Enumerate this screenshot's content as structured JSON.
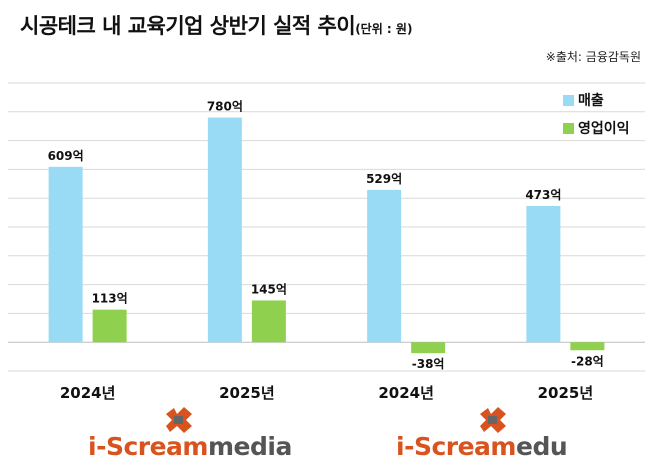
{
  "title": "시공테크 내 교육기업 상반기 실적 추이",
  "unit_label": "(단위 : 원)",
  "source": "※출처: 금융감독원",
  "colors": {
    "sales": "#99DBF5",
    "operating_profit": "#8FD14F",
    "logo_red": "#D9531E",
    "logo_gray": "#666666"
  },
  "logos": [
    {
      "prefix": "i-Scream",
      "suffix": "media"
    },
    {
      "prefix": "i-Scream",
      "suffix": "edu"
    }
  ],
  "chart_data": {
    "type": "bar",
    "title": "시공테크 내 교육기업 상반기 실적 추이",
    "categories": [
      "2024년",
      "2025년",
      "2024년",
      "2025년"
    ],
    "series": [
      {
        "name": "매출",
        "values": [
          609,
          780,
          529,
          473
        ],
        "labels": [
          "609억",
          "780억",
          "529억",
          "473억"
        ]
      },
      {
        "name": "영업이익",
        "values": [
          113,
          145,
          -38,
          -28
        ],
        "labels": [
          "113억",
          "145억",
          "-38억",
          "-28억"
        ]
      }
    ],
    "ylim": [
      -100,
      900
    ],
    "grid": true,
    "legend": "top-right"
  }
}
